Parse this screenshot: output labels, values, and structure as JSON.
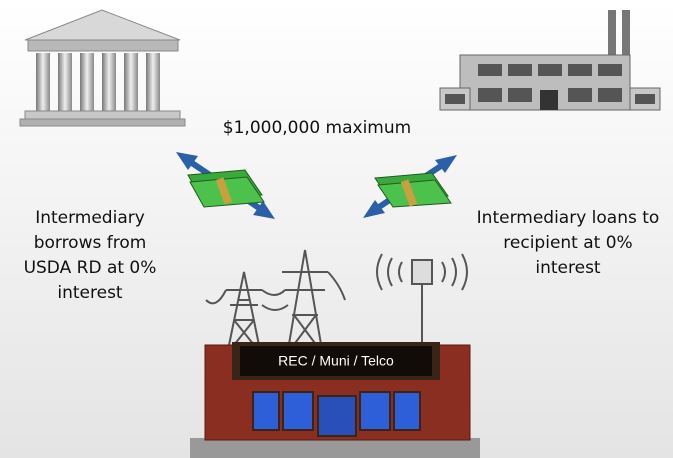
{
  "amount_label": "$1,000,000 maximum",
  "left_text": [
    "Intermediary",
    "borrows from",
    "USDA RD at 0%",
    "interest"
  ],
  "right_text": [
    "Intermediary loans to",
    "recipient at 0%",
    "interest"
  ],
  "store_sign": "REC / Muni / Telco"
}
